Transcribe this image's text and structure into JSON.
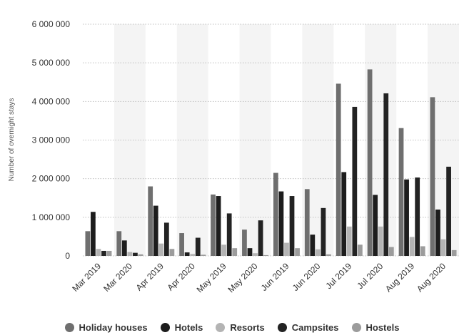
{
  "chart_data": {
    "type": "bar",
    "title": "",
    "xlabel": "",
    "ylabel": "Number of overnight stays",
    "ylim": [
      0,
      6000000
    ],
    "yticks": [
      0,
      1000000,
      2000000,
      3000000,
      4000000,
      5000000,
      6000000
    ],
    "ytick_labels": [
      "0",
      "1 000 000",
      "2 000 000",
      "3 000 000",
      "4 000 000",
      "5 000 000",
      "6 000 000"
    ],
    "categories": [
      "Mar 2019",
      "Mar 2020",
      "Apr 2019",
      "Apr 2020",
      "May 2019",
      "May 2020",
      "Jun 2019",
      "Jun 2020",
      "Jul 2019",
      "Jul 2020",
      "Aug 2019",
      "Aug 2020"
    ],
    "grid": true,
    "legend_position": "bottom",
    "series": [
      {
        "name": "Holiday houses",
        "color": "#6f6f6f",
        "values": [
          640000,
          640000,
          1800000,
          590000,
          1590000,
          680000,
          2150000,
          1730000,
          4460000,
          4830000,
          3310000,
          4110000
        ]
      },
      {
        "name": "Hotels",
        "color": "#1d1d1d",
        "values": [
          1140000,
          400000,
          1300000,
          90000,
          1550000,
          200000,
          1670000,
          550000,
          2170000,
          1580000,
          1980000,
          1200000
        ]
      },
      {
        "name": "Resorts",
        "color": "#b4b4b4",
        "values": [
          180000,
          100000,
          320000,
          50000,
          290000,
          70000,
          340000,
          170000,
          760000,
          760000,
          490000,
          430000
        ]
      },
      {
        "name": "Campsites",
        "color": "#232323",
        "values": [
          130000,
          80000,
          860000,
          470000,
          1100000,
          920000,
          1550000,
          1240000,
          3860000,
          4210000,
          2030000,
          2310000
        ]
      },
      {
        "name": "Hostels",
        "color": "#9c9c9c",
        "values": [
          130000,
          40000,
          180000,
          30000,
          200000,
          20000,
          200000,
          40000,
          290000,
          230000,
          250000,
          150000
        ]
      }
    ]
  }
}
